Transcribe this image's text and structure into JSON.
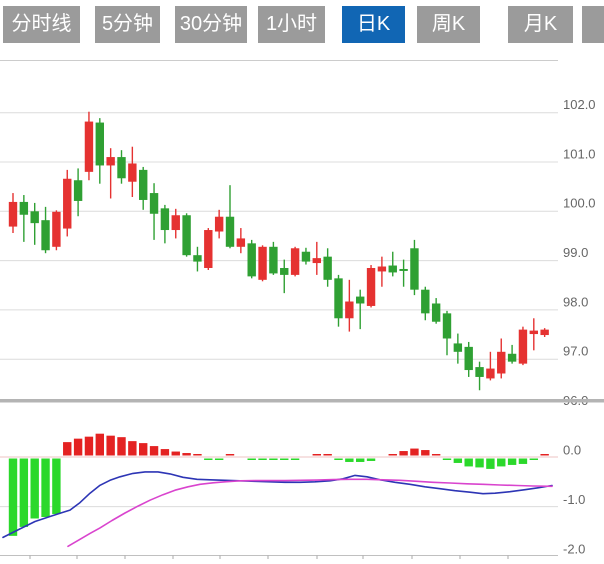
{
  "tab_bar": {
    "tabs": [
      {
        "id": "time-share",
        "label": "分时线",
        "active": false
      },
      {
        "id": "5min",
        "label": "5分钟",
        "active": false
      },
      {
        "id": "30min",
        "label": "30分钟",
        "active": false
      },
      {
        "id": "1hour",
        "label": "1小时",
        "active": false
      },
      {
        "id": "daily-k",
        "label": "日K",
        "active": true
      },
      {
        "id": "weekly-k",
        "label": "周K",
        "active": false
      },
      {
        "id": "monthly-k",
        "label": "月K",
        "active": false
      },
      {
        "id": "cutoff",
        "label": "",
        "active": false
      }
    ],
    "active_bg": "#1166b4",
    "inactive_bg": "#9b9b9b",
    "text_color": "#ffffff"
  },
  "chart_data": {
    "type": "candlestick_with_macd",
    "selected_period": "日K",
    "grid": true,
    "legend_position": "none",
    "price_axis": {
      "labels": [
        "102.0",
        "101.0",
        "100.0",
        "99.0",
        "98.0",
        "97.0",
        "96.0"
      ],
      "values": [
        102,
        101,
        100,
        99,
        98,
        97,
        96
      ],
      "side": "right"
    },
    "macd_axis": {
      "labels": [
        "0.0",
        "-1.0",
        "-2.0"
      ],
      "values": [
        0,
        -1,
        -2
      ],
      "side": "right"
    },
    "colors": {
      "up": "#e53231",
      "down": "#2fa033",
      "macd_up": "#e42222",
      "macd_down": "#2bd82b",
      "dif_line": "#2d35b5",
      "dea_line": "#d944ce",
      "grid": "#dcdcdc",
      "zero_line": "#eec3c3",
      "separator": "#b4b4b4",
      "axis_text": "#666666"
    },
    "candles": [
      {
        "o": 99.69,
        "h": 100.37,
        "l": 99.56,
        "c": 100.19
      },
      {
        "o": 100.19,
        "h": 100.33,
        "l": 99.38,
        "c": 99.93
      },
      {
        "o": 100.0,
        "h": 100.17,
        "l": 99.32,
        "c": 99.76
      },
      {
        "o": 99.82,
        "h": 100.09,
        "l": 99.15,
        "c": 99.21
      },
      {
        "o": 99.28,
        "h": 100.02,
        "l": 99.21,
        "c": 99.99
      },
      {
        "o": 99.65,
        "h": 100.84,
        "l": 99.49,
        "c": 100.66
      },
      {
        "o": 100.63,
        "h": 100.87,
        "l": 99.9,
        "c": 100.21
      },
      {
        "o": 100.8,
        "h": 102.02,
        "l": 100.63,
        "c": 101.82
      },
      {
        "o": 101.8,
        "h": 101.89,
        "l": 100.56,
        "c": 100.93
      },
      {
        "o": 100.93,
        "h": 101.28,
        "l": 100.26,
        "c": 101.1
      },
      {
        "o": 101.1,
        "h": 101.24,
        "l": 100.56,
        "c": 100.67
      },
      {
        "o": 100.6,
        "h": 101.31,
        "l": 100.29,
        "c": 100.97
      },
      {
        "o": 100.84,
        "h": 100.9,
        "l": 100.03,
        "c": 100.23
      },
      {
        "o": 100.37,
        "h": 100.57,
        "l": 99.42,
        "c": 99.95
      },
      {
        "o": 100.06,
        "h": 100.13,
        "l": 99.35,
        "c": 99.62
      },
      {
        "o": 99.62,
        "h": 100.05,
        "l": 99.45,
        "c": 99.92
      },
      {
        "o": 99.92,
        "h": 99.96,
        "l": 99.08,
        "c": 99.11
      },
      {
        "o": 99.11,
        "h": 99.28,
        "l": 98.78,
        "c": 98.98
      },
      {
        "o": 98.85,
        "h": 99.66,
        "l": 98.81,
        "c": 99.62
      },
      {
        "o": 99.59,
        "h": 100.03,
        "l": 99.45,
        "c": 99.89
      },
      {
        "o": 99.89,
        "h": 100.53,
        "l": 99.25,
        "c": 99.28
      },
      {
        "o": 99.28,
        "h": 99.66,
        "l": 99.15,
        "c": 99.45
      },
      {
        "o": 99.35,
        "h": 99.42,
        "l": 98.64,
        "c": 98.68
      },
      {
        "o": 98.61,
        "h": 99.31,
        "l": 98.58,
        "c": 99.28
      },
      {
        "o": 99.28,
        "h": 99.38,
        "l": 98.71,
        "c": 98.74
      },
      {
        "o": 98.85,
        "h": 99.02,
        "l": 98.34,
        "c": 98.71
      },
      {
        "o": 98.71,
        "h": 99.28,
        "l": 98.68,
        "c": 99.25
      },
      {
        "o": 99.18,
        "h": 99.26,
        "l": 98.92,
        "c": 98.98
      },
      {
        "o": 98.95,
        "h": 99.38,
        "l": 98.71,
        "c": 99.05
      },
      {
        "o": 99.08,
        "h": 99.25,
        "l": 98.47,
        "c": 98.61
      },
      {
        "o": 98.64,
        "h": 98.71,
        "l": 97.66,
        "c": 97.83
      },
      {
        "o": 97.83,
        "h": 98.61,
        "l": 97.56,
        "c": 98.17
      },
      {
        "o": 98.27,
        "h": 98.41,
        "l": 97.61,
        "c": 98.13
      },
      {
        "o": 98.08,
        "h": 98.91,
        "l": 98.05,
        "c": 98.85
      },
      {
        "o": 98.78,
        "h": 99.08,
        "l": 98.47,
        "c": 98.88
      },
      {
        "o": 98.9,
        "h": 99.18,
        "l": 98.68,
        "c": 98.76
      },
      {
        "o": 98.83,
        "h": 99.02,
        "l": 98.47,
        "c": 98.79
      },
      {
        "o": 99.25,
        "h": 99.42,
        "l": 98.3,
        "c": 98.41
      },
      {
        "o": 98.41,
        "h": 98.47,
        "l": 97.79,
        "c": 97.93
      },
      {
        "o": 98.13,
        "h": 98.24,
        "l": 97.72,
        "c": 97.76
      },
      {
        "o": 97.93,
        "h": 97.98,
        "l": 97.08,
        "c": 97.42
      },
      {
        "o": 97.32,
        "h": 97.52,
        "l": 96.91,
        "c": 97.15
      },
      {
        "o": 97.25,
        "h": 97.35,
        "l": 96.64,
        "c": 96.78
      },
      {
        "o": 96.84,
        "h": 96.95,
        "l": 96.37,
        "c": 96.64
      },
      {
        "o": 96.61,
        "h": 97.15,
        "l": 96.57,
        "c": 96.81
      },
      {
        "o": 96.71,
        "h": 97.42,
        "l": 96.61,
        "c": 97.15
      },
      {
        "o": 97.11,
        "h": 97.29,
        "l": 96.91,
        "c": 96.95
      },
      {
        "o": 96.91,
        "h": 97.66,
        "l": 96.88,
        "c": 97.6
      },
      {
        "o": 97.51,
        "h": 97.83,
        "l": 97.18,
        "c": 97.58
      },
      {
        "o": 97.49,
        "h": 97.63,
        "l": 97.45,
        "c": 97.6
      }
    ],
    "macd_histogram": [
      -1.59,
      -1.41,
      -1.24,
      -1.21,
      -1.15,
      0.3,
      0.37,
      0.41,
      0.47,
      0.43,
      0.4,
      0.32,
      0.28,
      0.22,
      0.16,
      0.11,
      0.08,
      0.03,
      -0.02,
      -0.02,
      0.02,
      0.0,
      -0.03,
      -0.03,
      -0.03,
      -0.03,
      -0.02,
      0.0,
      0.03,
      0.05,
      -0.06,
      -0.1,
      -0.1,
      -0.08,
      0.0,
      0.04,
      0.12,
      0.17,
      0.14,
      0.06,
      -0.04,
      -0.12,
      -0.19,
      -0.21,
      -0.24,
      -0.19,
      -0.16,
      -0.14,
      -0.06,
      0.04
    ],
    "dif_line_points": [
      [
        3,
        -1.62
      ],
      [
        20,
        -1.45
      ],
      [
        35,
        -1.3
      ],
      [
        50,
        -1.2
      ],
      [
        62,
        -1.12
      ],
      [
        70,
        -1.07
      ],
      [
        80,
        -0.92
      ],
      [
        90,
        -0.73
      ],
      [
        100,
        -0.57
      ],
      [
        110,
        -0.47
      ],
      [
        120,
        -0.4
      ],
      [
        133,
        -0.33
      ],
      [
        145,
        -0.3
      ],
      [
        158,
        -0.3
      ],
      [
        170,
        -0.34
      ],
      [
        183,
        -0.41
      ],
      [
        197,
        -0.45
      ],
      [
        210,
        -0.46
      ],
      [
        225,
        -0.47
      ],
      [
        240,
        -0.48
      ],
      [
        255,
        -0.49
      ],
      [
        270,
        -0.5
      ],
      [
        285,
        -0.51
      ],
      [
        300,
        -0.51
      ],
      [
        315,
        -0.5
      ],
      [
        330,
        -0.48
      ],
      [
        343,
        -0.44
      ],
      [
        355,
        -0.37
      ],
      [
        367,
        -0.4
      ],
      [
        380,
        -0.46
      ],
      [
        395,
        -0.51
      ],
      [
        410,
        -0.55
      ],
      [
        425,
        -0.6
      ],
      [
        440,
        -0.64
      ],
      [
        455,
        -0.68
      ],
      [
        470,
        -0.71
      ],
      [
        483,
        -0.74
      ],
      [
        495,
        -0.73
      ],
      [
        510,
        -0.7
      ],
      [
        525,
        -0.66
      ],
      [
        538,
        -0.62
      ],
      [
        552,
        -0.575
      ]
    ],
    "dea_line_points": [
      [
        68,
        -1.8
      ],
      [
        80,
        -1.66
      ],
      [
        90,
        -1.54
      ],
      [
        100,
        -1.43
      ],
      [
        112,
        -1.28
      ],
      [
        125,
        -1.13
      ],
      [
        138,
        -0.99
      ],
      [
        150,
        -0.87
      ],
      [
        163,
        -0.76
      ],
      [
        175,
        -0.67
      ],
      [
        188,
        -0.6
      ],
      [
        200,
        -0.55
      ],
      [
        213,
        -0.52
      ],
      [
        225,
        -0.5
      ],
      [
        240,
        -0.48
      ],
      [
        255,
        -0.475
      ],
      [
        270,
        -0.475
      ],
      [
        285,
        -0.475
      ],
      [
        300,
        -0.47
      ],
      [
        317,
        -0.465
      ],
      [
        333,
        -0.455
      ],
      [
        350,
        -0.45
      ],
      [
        367,
        -0.45
      ],
      [
        383,
        -0.46
      ],
      [
        400,
        -0.47
      ],
      [
        417,
        -0.49
      ],
      [
        433,
        -0.51
      ],
      [
        450,
        -0.525
      ],
      [
        467,
        -0.54
      ],
      [
        483,
        -0.55
      ],
      [
        500,
        -0.565
      ],
      [
        517,
        -0.575
      ],
      [
        533,
        -0.585
      ],
      [
        552,
        -0.59
      ]
    ]
  }
}
